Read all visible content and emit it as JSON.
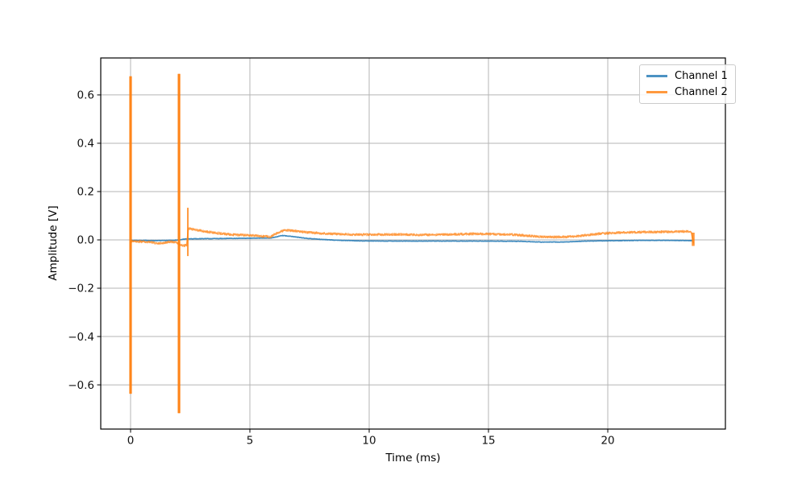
{
  "figure": {
    "background": "#ffffff"
  },
  "chart_data": {
    "type": "line",
    "title": "",
    "xlabel": "Time (ms)",
    "ylabel": "Amplitude [V]",
    "xlim": [
      -1.25,
      24.93
    ],
    "ylim": [
      -0.783,
      0.753
    ],
    "xticks": [
      0,
      5,
      10,
      15,
      20
    ],
    "yticks": [
      -0.6,
      -0.4,
      -0.2,
      0.0,
      0.2,
      0.4,
      0.6
    ],
    "grid": true,
    "grid_color": "#b5b5b5",
    "axis_color": "#000000",
    "tick_label_color": "#111111",
    "legend": {
      "position": "upper right",
      "entries": [
        "Channel 1",
        "Channel 2"
      ]
    },
    "series": [
      {
        "name": "Channel 1",
        "color": "#1f77b4",
        "opacity": 0.85,
        "linewidth": 1.7,
        "passes": 1,
        "noise": 0.0008,
        "points": [
          [
            0,
            -0.002
          ],
          [
            0.5,
            -0.002
          ],
          [
            1.0,
            -0.003
          ],
          [
            1.5,
            -0.002
          ],
          [
            2.0,
            -0.001
          ],
          [
            2.3,
            0.004
          ],
          [
            3.0,
            0.005
          ],
          [
            4.0,
            0.006
          ],
          [
            5.0,
            0.007
          ],
          [
            5.9,
            0.008
          ],
          [
            6.35,
            0.018
          ],
          [
            6.8,
            0.014
          ],
          [
            7.3,
            0.007
          ],
          [
            8.0,
            0.002
          ],
          [
            8.8,
            -0.002
          ],
          [
            9.6,
            -0.004
          ],
          [
            10.5,
            -0.005
          ],
          [
            12.0,
            -0.005
          ],
          [
            13.5,
            -0.005
          ],
          [
            15.0,
            -0.005
          ],
          [
            16.3,
            -0.006
          ],
          [
            17.2,
            -0.009
          ],
          [
            18.1,
            -0.009
          ],
          [
            18.8,
            -0.006
          ],
          [
            19.6,
            -0.004
          ],
          [
            20.5,
            -0.003
          ],
          [
            21.5,
            -0.002
          ],
          [
            22.5,
            -0.002
          ],
          [
            23.55,
            -0.003
          ]
        ],
        "spikes": []
      },
      {
        "name": "Channel 2",
        "color": "#ff7f0e",
        "opacity": 0.55,
        "linewidth": 1.5,
        "passes": 2,
        "noise": 0.0045,
        "points": [
          [
            0,
            -0.006
          ],
          [
            0.4,
            -0.007
          ],
          [
            0.8,
            -0.008
          ],
          [
            1.1,
            -0.015
          ],
          [
            1.35,
            -0.013
          ],
          [
            1.6,
            -0.008
          ],
          [
            1.9,
            -0.008
          ],
          [
            2.05,
            -0.018
          ],
          [
            2.2,
            -0.024
          ],
          [
            2.35,
            -0.022
          ],
          [
            2.42,
            0.048
          ],
          [
            2.7,
            0.042
          ],
          [
            3.0,
            0.037
          ],
          [
            3.4,
            0.031
          ],
          [
            3.9,
            0.025
          ],
          [
            4.4,
            0.021
          ],
          [
            5.0,
            0.019
          ],
          [
            5.5,
            0.015
          ],
          [
            5.85,
            0.013
          ],
          [
            6.15,
            0.028
          ],
          [
            6.45,
            0.04
          ],
          [
            6.9,
            0.037
          ],
          [
            7.4,
            0.031
          ],
          [
            8.0,
            0.027
          ],
          [
            8.8,
            0.024
          ],
          [
            9.6,
            0.022
          ],
          [
            10.4,
            0.022
          ],
          [
            11.2,
            0.023
          ],
          [
            12.0,
            0.021
          ],
          [
            12.8,
            0.022
          ],
          [
            13.6,
            0.023
          ],
          [
            14.4,
            0.025
          ],
          [
            15.2,
            0.024
          ],
          [
            16.0,
            0.022
          ],
          [
            16.7,
            0.017
          ],
          [
            17.3,
            0.012
          ],
          [
            18.2,
            0.012
          ],
          [
            18.8,
            0.016
          ],
          [
            19.4,
            0.023
          ],
          [
            20.0,
            0.028
          ],
          [
            20.7,
            0.031
          ],
          [
            21.4,
            0.032
          ],
          [
            22.1,
            0.033
          ],
          [
            22.8,
            0.034
          ],
          [
            23.3,
            0.035
          ],
          [
            23.5,
            0.032
          ],
          [
            23.6,
            -0.015
          ]
        ],
        "spikes": [
          {
            "x": 0.0,
            "ymin": -0.637,
            "ymax": 0.677,
            "width": 3.4,
            "core": true
          },
          {
            "x": 2.03,
            "ymin": -0.717,
            "ymax": 0.687,
            "width": 3.4,
            "core": true
          },
          {
            "x": 2.4,
            "ymin": -0.067,
            "ymax": 0.133,
            "width": 2.0,
            "core": false
          },
          {
            "x": 23.58,
            "ymin": -0.025,
            "ymax": 0.03,
            "width": 3.5,
            "core": false
          }
        ]
      }
    ]
  }
}
